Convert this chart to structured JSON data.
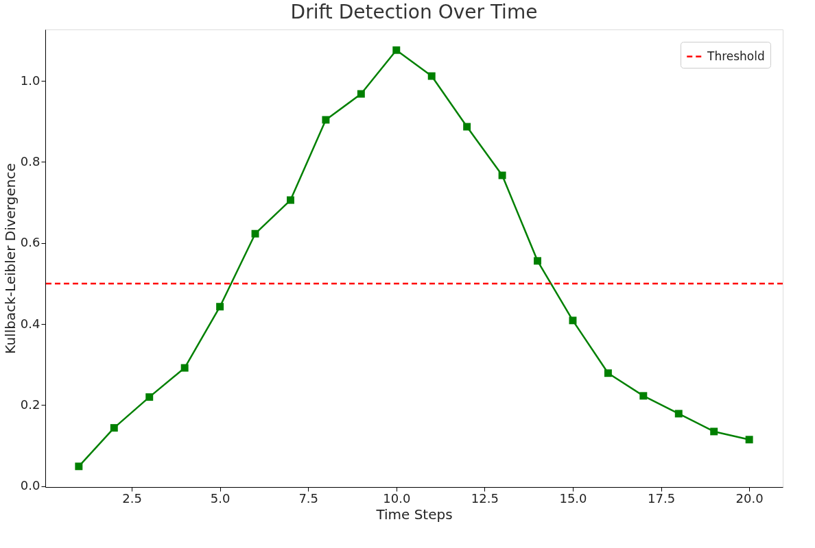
{
  "chart_data": {
    "type": "line",
    "title": "Drift Detection Over Time",
    "xlabel": "Time Steps",
    "ylabel": "Kullback-Leibler Divergence",
    "x": [
      1,
      2,
      3,
      4,
      5,
      6,
      7,
      8,
      9,
      10,
      11,
      12,
      13,
      14,
      15,
      16,
      17,
      18,
      19,
      20
    ],
    "series": [
      {
        "color": "#008000",
        "values": [
          0.049,
          0.144,
          0.22,
          0.292,
          0.443,
          0.623,
          0.706,
          0.904,
          0.968,
          1.076,
          1.012,
          0.887,
          0.767,
          0.556,
          0.409,
          0.279,
          0.223,
          0.179,
          0.135,
          0.115
        ]
      }
    ],
    "marker": "square",
    "line_style": "solid",
    "xlim": [
      0.05,
      20.95
    ],
    "xticks": [
      {
        "value": 2.5,
        "label": "2.5"
      },
      {
        "value": 5,
        "label": "5.0"
      },
      {
        "value": 7.5,
        "label": "7.5"
      },
      {
        "value": 10,
        "label": "10.0"
      },
      {
        "value": 12.5,
        "label": "12.5"
      },
      {
        "value": 15,
        "label": "15.0"
      },
      {
        "value": 17.5,
        "label": "17.5"
      },
      {
        "value": 20,
        "label": "20.0"
      }
    ],
    "ylim": [
      -0.002,
      1.127
    ],
    "yticks": [
      {
        "value": 0,
        "label": "0.0"
      },
      {
        "value": 0.2,
        "label": "0.2"
      },
      {
        "value": 0.4,
        "label": "0.4"
      },
      {
        "value": 0.6,
        "label": "0.6"
      },
      {
        "value": 0.8,
        "label": "0.8"
      },
      {
        "value": 1,
        "label": "1.0"
      }
    ],
    "ref_lines": [
      {
        "axis": "y",
        "value": 0.5,
        "label": "Threshold",
        "color": "#ff0000",
        "line_style": "dashed"
      }
    ],
    "legend": "top right",
    "grid": false
  }
}
